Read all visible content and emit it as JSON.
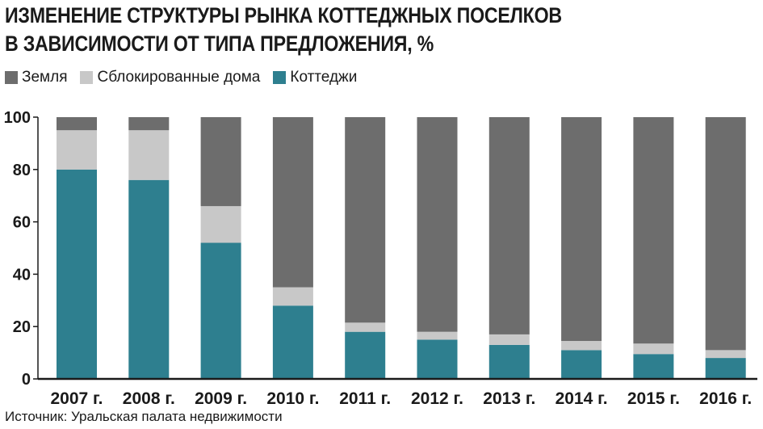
{
  "title_lines": [
    "ИЗМЕНЕНИЕ СТРУКТУРЫ РЫНКА КОТТЕДЖНЫХ ПОСЕЛКОВ",
    "В ЗАВИСИМОСТИ ОТ ТИПА ПРЕДЛОЖЕНИЯ, %"
  ],
  "legend": [
    {
      "label": "Земля",
      "color": "#6d6d6d"
    },
    {
      "label": "Сблокированные дома",
      "color": "#c8c8c8"
    },
    {
      "label": "Коттеджи",
      "color": "#2e7f8f"
    }
  ],
  "source": "Источник: Уральская палата недвижимости",
  "chart_data": {
    "type": "bar",
    "stacked": true,
    "title": "ИЗМЕНЕНИЕ СТРУКТУРЫ РЫНКА КОТТЕДЖНЫХ ПОСЕЛКОВ В ЗАВИСИМОСТИ ОТ ТИПА ПРЕДЛОЖЕНИЯ, %",
    "categories": [
      "2007 г.",
      "2008 г.",
      "2009 г.",
      "2010 г.",
      "2011 г.",
      "2012 г.",
      "2013 г.",
      "2014 г.",
      "2015 г.",
      "2016 г."
    ],
    "series": [
      {
        "name": "Коттеджи",
        "color": "#2e7f8f",
        "values": [
          80,
          76,
          52,
          28,
          18,
          15,
          13,
          11,
          9.5,
          8
        ]
      },
      {
        "name": "Сблокированные дома",
        "color": "#c8c8c8",
        "values": [
          15,
          19,
          14,
          7,
          3.5,
          3,
          4,
          3.5,
          4,
          3
        ]
      },
      {
        "name": "Земля",
        "color": "#6d6d6d",
        "values": [
          5,
          5,
          34,
          65,
          78.5,
          82,
          83,
          85.5,
          86.5,
          89
        ]
      }
    ],
    "yticks": [
      0,
      20,
      40,
      60,
      80,
      100
    ],
    "ylim": [
      0,
      100
    ],
    "grid": false,
    "legend_position": "top-left"
  }
}
